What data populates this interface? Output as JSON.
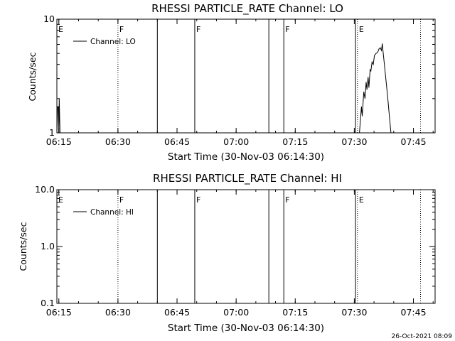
{
  "footer": "26-Oct-2021 08:09",
  "chart_data": [
    {
      "type": "line",
      "title": "RHESSI PARTICLE_RATE Channel: LO",
      "xlabel": "Start Time (30-Nov-03 06:14:30)",
      "ylabel": "Counts/sec",
      "x_unit": "minutes after 06:14:30",
      "xlim": [
        0,
        96
      ],
      "ylim": [
        1,
        10
      ],
      "yscale": "log",
      "x_ticks": [
        {
          "value": 0.5,
          "label": "06:15"
        },
        {
          "value": 15.5,
          "label": "06:30"
        },
        {
          "value": 30.5,
          "label": "06:45"
        },
        {
          "value": 45.5,
          "label": "07:00"
        },
        {
          "value": 60.5,
          "label": "07:15"
        },
        {
          "value": 75.5,
          "label": "07:30"
        },
        {
          "value": 90.5,
          "label": "07:45"
        }
      ],
      "y_ticks": [
        {
          "value": 1,
          "label": "1"
        },
        {
          "value": 10,
          "label": "10"
        }
      ],
      "legend": {
        "label": "Channel: LO",
        "position": "top-left"
      },
      "solid_markers": [
        25.5,
        35.0,
        53.8,
        57.6,
        75.8
      ],
      "dotted_markers": [
        15.5,
        76.3,
        92.3
      ],
      "flag_labels": [
        {
          "x": 0.0,
          "text": "E"
        },
        {
          "x": 15.5,
          "text": "F"
        },
        {
          "x": 35.0,
          "text": "F"
        },
        {
          "x": 57.6,
          "text": "F"
        },
        {
          "x": 76.3,
          "text": "E"
        }
      ],
      "series": [
        {
          "name": "Channel: LO",
          "segments": [
            [
              [
                0.0,
                1.0
              ],
              [
                0.2,
                1.7
              ],
              [
                0.4,
                1.7
              ],
              [
                0.5,
                1.0
              ],
              [
                0.6,
                2.0
              ],
              [
                0.8,
                1.0
              ]
            ],
            [
              [
                76.8,
                1.0
              ],
              [
                77.3,
                1.7
              ],
              [
                77.5,
                1.4
              ],
              [
                77.9,
                2.3
              ],
              [
                78.2,
                2.0
              ],
              [
                78.5,
                2.8
              ],
              [
                78.7,
                2.4
              ],
              [
                79.0,
                3.1
              ],
              [
                79.2,
                2.5
              ],
              [
                79.5,
                3.6
              ],
              [
                79.7,
                3.5
              ],
              [
                80.0,
                4.2
              ],
              [
                80.3,
                4.0
              ],
              [
                80.6,
                4.8
              ],
              [
                81.0,
                5.0
              ],
              [
                81.4,
                5.1
              ],
              [
                81.8,
                5.5
              ],
              [
                82.1,
                5.6
              ],
              [
                82.4,
                5.3
              ],
              [
                82.6,
                6.1
              ],
              [
                82.8,
                5.2
              ],
              [
                83.1,
                4.1
              ],
              [
                83.5,
                3.0
              ],
              [
                84.0,
                2.0
              ],
              [
                84.4,
                1.4
              ],
              [
                84.8,
                1.0
              ]
            ]
          ]
        }
      ]
    },
    {
      "type": "line",
      "title": "RHESSI PARTICLE_RATE Channel: HI",
      "xlabel": "Start Time (30-Nov-03 06:14:30)",
      "ylabel": "Counts/sec",
      "x_unit": "minutes after 06:14:30",
      "xlim": [
        0,
        96
      ],
      "ylim": [
        0.1,
        10
      ],
      "yscale": "log",
      "x_ticks": [
        {
          "value": 0.5,
          "label": "06:15"
        },
        {
          "value": 15.5,
          "label": "06:30"
        },
        {
          "value": 30.5,
          "label": "06:45"
        },
        {
          "value": 45.5,
          "label": "07:00"
        },
        {
          "value": 60.5,
          "label": "07:15"
        },
        {
          "value": 75.5,
          "label": "07:30"
        },
        {
          "value": 90.5,
          "label": "07:45"
        }
      ],
      "y_ticks": [
        {
          "value": 0.1,
          "label": "0.1"
        },
        {
          "value": 1,
          "label": "1.0"
        },
        {
          "value": 10,
          "label": "10.0"
        }
      ],
      "legend": {
        "label": "Channel: HI",
        "position": "top-left"
      },
      "solid_markers": [
        25.5,
        35.0,
        53.8,
        57.6,
        75.8
      ],
      "dotted_markers": [
        15.5,
        76.3,
        92.3
      ],
      "flag_labels": [
        {
          "x": 0.0,
          "text": "E"
        },
        {
          "x": 15.5,
          "text": "F"
        },
        {
          "x": 35.0,
          "text": "F"
        },
        {
          "x": 57.6,
          "text": "F"
        },
        {
          "x": 76.3,
          "text": "E"
        }
      ],
      "series": [
        {
          "name": "Channel: HI",
          "segments": []
        }
      ]
    }
  ]
}
